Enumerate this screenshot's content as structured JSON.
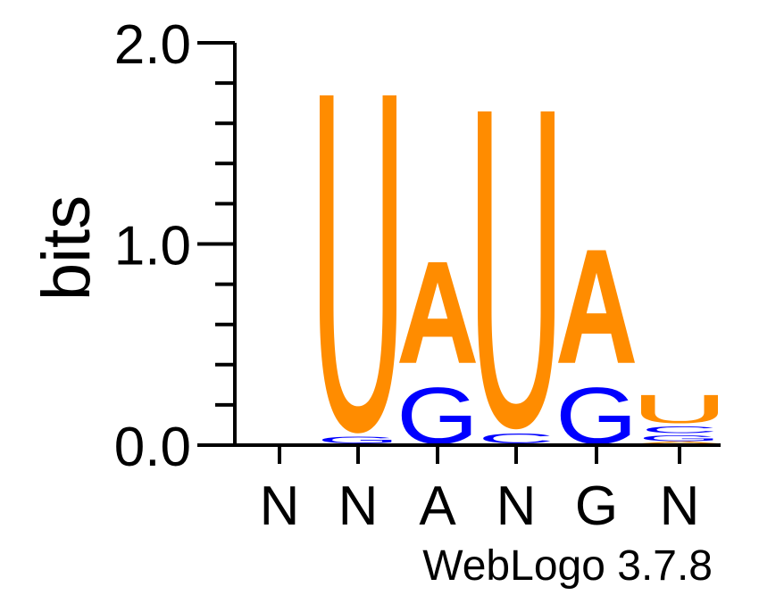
{
  "chart_data": {
    "type": "sequence-logo",
    "ylabel": "bits",
    "ylim": [
      0,
      2.0
    ],
    "y_ticks": [
      "0.0",
      "1.0",
      "2.0"
    ],
    "positions": [
      "N",
      "N",
      "A",
      "N",
      "G",
      "N"
    ],
    "stacks": [
      [],
      [
        {
          "letter": "G",
          "bits": 0.05
        },
        {
          "letter": "U",
          "bits": 1.68
        }
      ],
      [
        {
          "letter": "G",
          "bits": 0.4
        },
        {
          "letter": "A",
          "bits": 0.5
        }
      ],
      [
        {
          "letter": "C",
          "bits": 0.07
        },
        {
          "letter": "U",
          "bits": 1.58
        }
      ],
      [
        {
          "letter": "G",
          "bits": 0.4
        },
        {
          "letter": "A",
          "bits": 0.56
        }
      ],
      [
        {
          "letter": "A",
          "bits": 0.01
        },
        {
          "letter": "G",
          "bits": 0.04
        },
        {
          "letter": "C",
          "bits": 0.05
        },
        {
          "letter": "U",
          "bits": 0.14
        }
      ]
    ],
    "colors": {
      "U": "#ff8c00",
      "A": "#ff8c00",
      "G": "#0000ff",
      "C": "#0000ff"
    }
  },
  "footer": {
    "version_label": "WebLogo 3.7.8"
  }
}
